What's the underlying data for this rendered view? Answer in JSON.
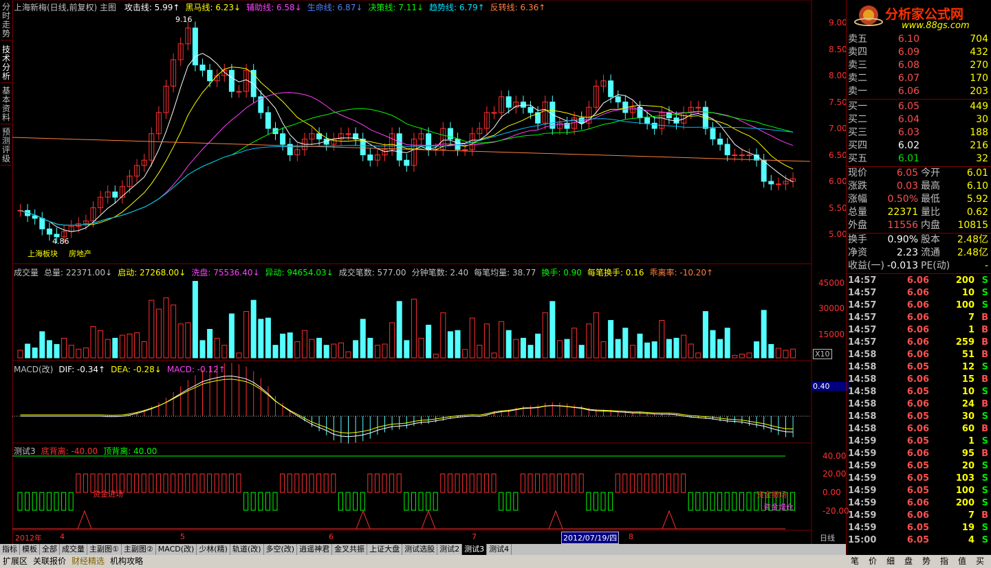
{
  "colors": {
    "up": "#ff3030",
    "down": "#54ffff",
    "grid": "#800000",
    "ma5": "#ffffff",
    "ma10": "#ffff00",
    "ma20": "#ff40ff",
    "ma30": "#00ff00",
    "ma60": "#00c0ff",
    "ma120": "#ff8040"
  },
  "left_tabs": [
    "分时走势",
    "技术分析",
    "基本资料",
    "预测评级"
  ],
  "main": {
    "title": "上海新梅(日线,前复权) 主图",
    "indicators": [
      {
        "label": "攻击线: 5.99",
        "arrow": "↑",
        "color": "#ffffff"
      },
      {
        "label": "黑马线: 6.23",
        "arrow": "↓",
        "color": "#ffff00"
      },
      {
        "label": "辅助线: 6.58",
        "arrow": "↓",
        "color": "#ff40ff"
      },
      {
        "label": "生命线: 6.87",
        "arrow": "↓",
        "color": "#5080ff"
      },
      {
        "label": "决策线: 7.11",
        "arrow": "↓",
        "color": "#00ff00"
      },
      {
        "label": "趋势线: 6.79",
        "arrow": "↑",
        "color": "#00e0ff"
      },
      {
        "label": "反转线: 6.36",
        "arrow": "↑",
        "color": "#ff8040"
      }
    ],
    "high_label": "9.16",
    "low_label": "4.86",
    "sector_label": "上海板块",
    "industry_label": "房地产",
    "y_ticks": [
      "9.00",
      "8.50",
      "8.00",
      "7.50",
      "7.00",
      "6.50",
      "6.00",
      "5.50",
      "5.00"
    ]
  },
  "volume": {
    "indicators": [
      {
        "label": "成交量",
        "color": "#c0c0c0"
      },
      {
        "label": "总量: 22371.00↓",
        "color": "#c0c0c0"
      },
      {
        "label": "启动: 27268.00↓",
        "color": "#ffff00"
      },
      {
        "label": "洗盘: 75536.40↓",
        "color": "#ff40ff"
      },
      {
        "label": "异动: 94654.03↓",
        "color": "#00ff00"
      },
      {
        "label": "成交笔数: 577.00",
        "color": "#c0c0c0"
      },
      {
        "label": "分钟笔数: 2.40",
        "color": "#c0c0c0"
      },
      {
        "label": "每笔均量: 38.77",
        "color": "#c0c0c0"
      },
      {
        "label": "换手: 0.90",
        "color": "#00ff00"
      },
      {
        "label": "每笔换手: 0.16",
        "color": "#ffff00"
      },
      {
        "label": "乖离率: -10.20↑",
        "color": "#ff8040"
      }
    ],
    "y_ticks": [
      "45000",
      "30000",
      "15000"
    ],
    "unit": "X10"
  },
  "macd": {
    "indicators": [
      {
        "label": "MACD(改)",
        "color": "#c0c0c0"
      },
      {
        "label": "DIF: -0.34↑",
        "color": "#ffffff"
      },
      {
        "label": "DEA: -0.28↓",
        "color": "#ffff00"
      },
      {
        "label": "MACD: -0.12↑",
        "color": "#ff40ff"
      }
    ],
    "value_box": "0.40"
  },
  "test": {
    "indicators": [
      {
        "label": "测试3",
        "color": "#c0c0c0"
      },
      {
        "label": "底背离: -40.00",
        "color": "#ff3030"
      },
      {
        "label": "顶背离: 40.00",
        "color": "#00ff00"
      }
    ],
    "y_ticks": [
      "40.00",
      "20.00",
      "0.00",
      "-20.00"
    ],
    "text_entry": "资金进场",
    "text_exit": "资金撤场",
    "text_add": "资金增仓"
  },
  "x_axis": {
    "labels": [
      "2012年",
      "4",
      "5",
      "6",
      "7",
      "8"
    ],
    "cursor_date": "2012/07/19/四",
    "period": "日线"
  },
  "bottom_tabs": [
    "指标",
    "模板",
    "全部",
    "成交量",
    "主副图①",
    "主副图②",
    "MACD(改)",
    "少林(精)",
    "轨道(改)",
    "多空(改)",
    "逍遥神君",
    "金叉共振",
    "上证大盘",
    "测试选股",
    "测试2",
    "测试3",
    "测试4"
  ],
  "bottom_tabs2": [
    "扩展区",
    "关联报价",
    "财经精选",
    "机构攻略"
  ],
  "right_tabs": [
    "笔",
    "价",
    "细",
    "盘",
    "势",
    "指",
    "值",
    "买"
  ],
  "logo": {
    "text": "分析家公式网",
    "url": "www.88gs.com"
  },
  "quote": {
    "sell": [
      {
        "label": "卖五",
        "price": "6.10",
        "vol": "704"
      },
      {
        "label": "卖四",
        "price": "6.09",
        "vol": "432"
      },
      {
        "label": "卖三",
        "price": "6.08",
        "vol": "270"
      },
      {
        "label": "卖二",
        "price": "6.07",
        "vol": "170"
      },
      {
        "label": "卖一",
        "price": "6.06",
        "vol": "203"
      }
    ],
    "buy": [
      {
        "label": "买一",
        "price": "6.05",
        "vol": "449",
        "c": "red"
      },
      {
        "label": "买二",
        "price": "6.04",
        "vol": "30",
        "c": "red"
      },
      {
        "label": "买三",
        "price": "6.03",
        "vol": "188",
        "c": "red"
      },
      {
        "label": "买四",
        "price": "6.02",
        "vol": "216",
        "c": "wht"
      },
      {
        "label": "买五",
        "price": "6.01",
        "vol": "32",
        "c": "grn"
      }
    ],
    "stats": [
      {
        "l1": "现价",
        "v1": "6.05",
        "c1": "red",
        "l2": "今开",
        "v2": "6.01",
        "c2": "grn"
      },
      {
        "l1": "涨跌",
        "v1": "0.03",
        "c1": "red",
        "l2": "最高",
        "v2": "6.10",
        "c2": "red"
      },
      {
        "l1": "涨幅",
        "v1": "0.50%",
        "c1": "red",
        "l2": "最低",
        "v2": "5.92",
        "c2": "grn"
      },
      {
        "l1": "总量",
        "v1": "22371",
        "c1": "yel",
        "l2": "量比",
        "v2": "0.62",
        "c2": "grn"
      },
      {
        "l1": "外盘",
        "v1": "11556",
        "c1": "red",
        "l2": "内盘",
        "v2": "10815",
        "c2": "grn"
      }
    ],
    "stats2": [
      {
        "l1": "换手",
        "v1": "0.90%",
        "l2": "股本",
        "v2": "2.48亿"
      },
      {
        "l1": "净资",
        "v1": "2.23",
        "l2": "流通",
        "v2": "2.48亿"
      },
      {
        "l1": "收益(一)",
        "v1": "-0.013",
        "l2": "PE(动)",
        "v2": "-"
      }
    ]
  },
  "ticks": [
    [
      "14:57",
      "6.06",
      "200",
      "S"
    ],
    [
      "14:57",
      "6.06",
      "10",
      "S"
    ],
    [
      "14:57",
      "6.06",
      "100",
      "S"
    ],
    [
      "14:57",
      "6.06",
      "7",
      "B"
    ],
    [
      "14:57",
      "6.06",
      "1",
      "B"
    ],
    [
      "14:57",
      "6.06",
      "259",
      "B"
    ],
    [
      "14:58",
      "6.06",
      "51",
      "B"
    ],
    [
      "14:58",
      "6.05",
      "12",
      "S"
    ],
    [
      "14:58",
      "6.06",
      "15",
      "B"
    ],
    [
      "14:58",
      "6.05",
      "10",
      "S"
    ],
    [
      "14:58",
      "6.06",
      "24",
      "B"
    ],
    [
      "14:58",
      "6.05",
      "30",
      "S"
    ],
    [
      "14:58",
      "6.06",
      "60",
      "B"
    ],
    [
      "14:59",
      "6.05",
      "1",
      "S"
    ],
    [
      "14:59",
      "6.06",
      "95",
      "B"
    ],
    [
      "14:59",
      "6.05",
      "20",
      "S"
    ],
    [
      "14:59",
      "6.05",
      "103",
      "S"
    ],
    [
      "14:59",
      "6.05",
      "100",
      "S"
    ],
    [
      "14:59",
      "6.06",
      "200",
      "S"
    ],
    [
      "14:59",
      "6.06",
      "7",
      "B"
    ],
    [
      "14:59",
      "6.05",
      "19",
      "S"
    ],
    [
      "15:00",
      "6.05",
      "4",
      "S"
    ]
  ]
}
